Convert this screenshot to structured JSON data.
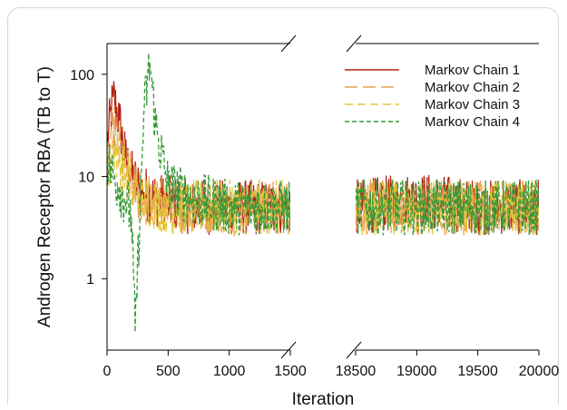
{
  "chart_data": {
    "type": "line",
    "title": "",
    "xlabel": "Iteration",
    "ylabel": "Androgen Receptor RBA (TB to T)",
    "yscale": "log",
    "ylim": [
      0.2,
      200
    ],
    "y_ticks": [
      {
        "value": 1,
        "label": "1"
      },
      {
        "value": 10,
        "label": "10"
      },
      {
        "value": 100,
        "label": "100"
      }
    ],
    "x_segments": [
      {
        "xlim": [
          0,
          1500
        ],
        "ticks": [
          {
            "value": 0,
            "label": "0"
          },
          {
            "value": 500,
            "label": "500"
          },
          {
            "value": 1000,
            "label": "1000"
          },
          {
            "value": 1500,
            "label": "1500"
          }
        ]
      },
      {
        "xlim": [
          18500,
          20000
        ],
        "ticks": [
          {
            "value": 18500,
            "label": "18500"
          },
          {
            "value": 19000,
            "label": "19000"
          },
          {
            "value": 19500,
            "label": "19500"
          },
          {
            "value": 20000,
            "label": "20000"
          }
        ]
      }
    ],
    "axis_break": true,
    "legend_position": "top-right",
    "series": [
      {
        "name": "Markov Chain 1",
        "color": "#b22414",
        "dash": "solid",
        "x": [
          0,
          50,
          100,
          150,
          200,
          250,
          300,
          400,
          500,
          700,
          1000,
          1500,
          18500,
          19000,
          19500,
          20000
        ],
        "y": [
          20,
          60,
          35,
          15,
          10,
          8,
          7,
          6,
          5.5,
          5,
          5,
          5,
          5,
          6,
          5,
          5
        ]
      },
      {
        "name": "Markov Chain 2",
        "color": "#e8a050",
        "dash": "long-dash",
        "x": [
          0,
          50,
          100,
          150,
          200,
          250,
          300,
          400,
          500,
          700,
          1000,
          1500,
          18500,
          19000,
          19500,
          20000
        ],
        "y": [
          12,
          30,
          20,
          12,
          9,
          7,
          6,
          5.5,
          5,
          5,
          5,
          5,
          5,
          5,
          5,
          5
        ]
      },
      {
        "name": "Markov Chain 3",
        "color": "#e2c53a",
        "dash": "dash",
        "x": [
          0,
          50,
          100,
          150,
          200,
          250,
          300,
          400,
          500,
          700,
          1000,
          1500,
          18500,
          19000,
          19500,
          20000
        ],
        "y": [
          8,
          20,
          15,
          10,
          8,
          7,
          6,
          5.5,
          5,
          5,
          5,
          5,
          5,
          5,
          5,
          5
        ]
      },
      {
        "name": "Markov Chain 4",
        "color": "#3a9a3a",
        "dash": "short-dash",
        "x": [
          0,
          50,
          100,
          150,
          200,
          230,
          300,
          350,
          400,
          500,
          700,
          1000,
          1500,
          18500,
          19000,
          19500,
          20000
        ],
        "y": [
          15,
          10,
          8,
          6,
          4,
          0.3,
          40,
          130,
          30,
          8,
          6,
          5,
          5,
          5,
          5,
          5,
          5
        ]
      }
    ]
  }
}
